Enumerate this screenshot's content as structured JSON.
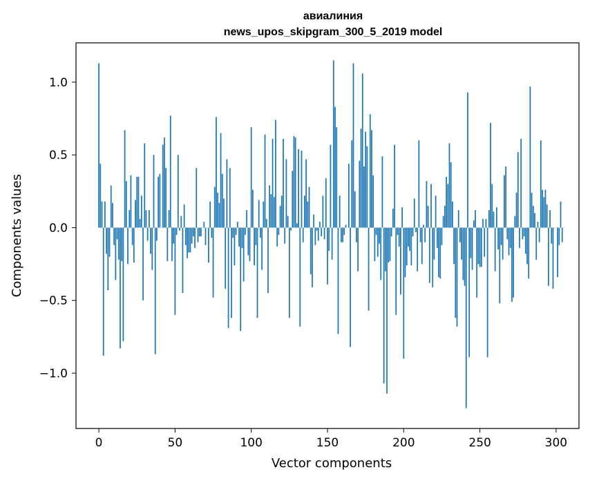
{
  "chart_data": {
    "type": "bar",
    "title": "авиалиния",
    "subtitle": "news_upos_skipgram_300_5_2019 model",
    "xlabel": "Vector components",
    "ylabel": "Components values",
    "xlim": [
      -15,
      315
    ],
    "ylim": [
      -1.38,
      1.27
    ],
    "xticks": [
      0,
      50,
      100,
      150,
      200,
      250,
      300
    ],
    "yticks": [
      -1.0,
      -0.5,
      0.0,
      0.5,
      1.0
    ],
    "xtick_labels": [
      "0",
      "50",
      "100",
      "150",
      "200",
      "250",
      "300"
    ],
    "ytick_labels": [
      "−1.0",
      "−0.5",
      "0.0",
      "0.5",
      "1.0"
    ],
    "bar_color": "#1f77b4",
    "grid": false,
    "values": [
      1.13,
      0.44,
      0.18,
      -0.88,
      0.18,
      -0.18,
      -0.43,
      -0.2,
      0.29,
      0.17,
      -0.12,
      -0.36,
      -0.08,
      -0.22,
      -0.83,
      -0.23,
      -0.78,
      0.67,
      0.32,
      -0.25,
      0.12,
      0.36,
      -0.12,
      -0.24,
      0.19,
      0.35,
      0.35,
      0.06,
      0.22,
      -0.5,
      0.58,
      0.12,
      -0.09,
      0.12,
      -0.18,
      -0.29,
      0.5,
      -0.87,
      -0.09,
      0.35,
      0.37,
      0.0,
      0.57,
      0.62,
      0.41,
      -0.23,
      0.12,
      0.77,
      -0.23,
      -0.11,
      -0.6,
      -0.05,
      0.5,
      -0.02,
      0.08,
      -0.45,
      0.16,
      -0.12,
      -0.21,
      -0.17,
      -0.17,
      -0.11,
      -0.06,
      -0.14,
      0.41,
      -0.1,
      -0.06,
      -0.06,
      0.0,
      0.04,
      -0.12,
      0.0,
      -0.24,
      0.18,
      -0.07,
      -0.48,
      0.28,
      0.76,
      0.24,
      0.17,
      0.65,
      0.37,
      0.2,
      -0.42,
      0.47,
      -0.69,
      0.41,
      -0.62,
      -0.07,
      -0.26,
      -0.05,
      0.04,
      -0.13,
      -0.71,
      -0.14,
      -0.37,
      -0.05,
      0.12,
      -0.19,
      -0.23,
      0.69,
      0.26,
      -0.26,
      -0.12,
      -0.62,
      0.19,
      -0.07,
      -0.29,
      0.18,
      0.64,
      0.06,
      -0.45,
      0.29,
      0.23,
      0.61,
      0.21,
      0.74,
      -0.13,
      -0.05,
      0.15,
      0.22,
      0.61,
      -0.11,
      0.47,
      0.08,
      -0.62,
      -0.02,
      0.39,
      0.63,
      0.62,
      0.03,
      0.54,
      -0.68,
      0.53,
      -0.1,
      0.22,
      0.47,
      0.18,
      0.28,
      -0.32,
      -0.41,
      0.09,
      -0.12,
      -0.02,
      -0.09,
      0.04,
      -0.06,
      0.22,
      -0.08,
      0.34,
      -0.39,
      -0.16,
      0.57,
      -0.22,
      1.15,
      0.83,
      0.69,
      -0.73,
      0.22,
      -0.1,
      -0.1,
      -0.05,
      0.02,
      0.0,
      0.44,
      -0.82,
      0.6,
      1.13,
      0.25,
      -0.1,
      -0.3,
      0.46,
      0.68,
      1.06,
      0.42,
      0.66,
      0.56,
      -0.57,
      0.78,
      0.67,
      0.36,
      -0.23,
      -0.05,
      -0.2,
      -0.11,
      -0.36,
      0.49,
      -1.07,
      -0.3,
      -1.14,
      -0.24,
      -0.23,
      -0.06,
      0.13,
      0.57,
      -0.6,
      -0.05,
      -0.13,
      -0.46,
      0.14,
      -0.9,
      -0.34,
      -0.26,
      -0.13,
      -0.16,
      -0.26,
      -0.06,
      0.2,
      -0.03,
      -0.3,
      0.6,
      -0.1,
      -0.25,
      0.02,
      -0.1,
      0.32,
      0.15,
      -0.38,
      0.3,
      -0.41,
      -0.22,
      0.22,
      -0.14,
      -0.34,
      -0.35,
      -0.12,
      0.08,
      0.15,
      0.35,
      0.3,
      0.58,
      0.45,
      0.18,
      -0.25,
      -0.62,
      -0.68,
      0.12,
      -0.1,
      -0.22,
      -0.36,
      -0.4,
      -1.24,
      0.93,
      -0.89,
      -0.21,
      -0.29,
      0.05,
      0.12,
      -0.48,
      -0.25,
      -0.27,
      -0.27,
      0.06,
      -0.2,
      0.06,
      -0.89,
      0.12,
      0.72,
      0.3,
      0.11,
      -0.3,
      0.14,
      -0.15,
      -0.52,
      -0.12,
      -0.22,
      0.36,
      0.42,
      -0.08,
      -0.19,
      -0.14,
      -0.51,
      -0.48,
      0.08,
      0.24,
      0.52,
      -0.14,
      0.61,
      -0.08,
      -0.06,
      -0.18,
      -0.25,
      -0.35,
      0.97,
      0.24,
      0.15,
      0.1,
      -0.22,
      0.04,
      -0.1,
      0.6,
      0.26,
      0.21,
      0.26,
      0.16,
      -0.4,
      0.12,
      -0.11,
      -0.42,
      0.0,
      0.0,
      -0.34,
      -0.12,
      0.18,
      -0.1,
      0.0
    ]
  }
}
